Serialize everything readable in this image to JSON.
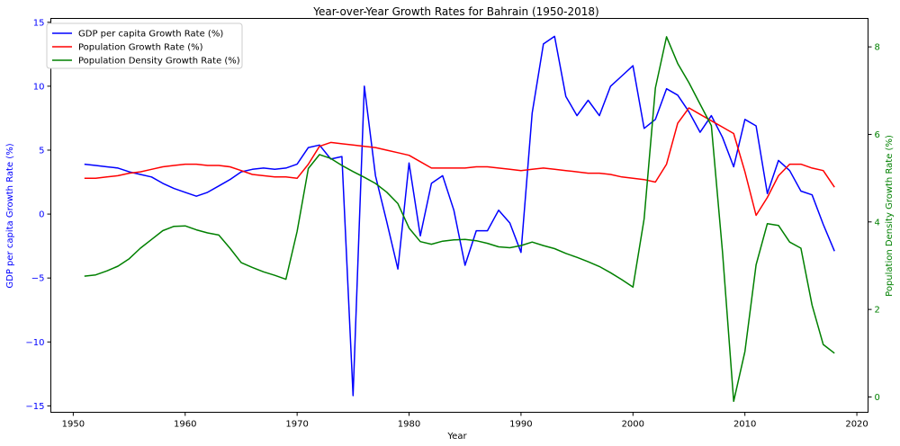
{
  "chart_data": {
    "type": "line",
    "title": "Year-over-Year Growth Rates for Bahrain (1950-2018)",
    "xlabel": "Year",
    "ylabel_left": "GDP per capita Growth Rate (%)",
    "ylabel_right": "Population Density Growth Rate (%)",
    "xlim": [
      1948,
      2021
    ],
    "ylim_left": [
      -15.5,
      15.3
    ],
    "ylim_right": [
      -0.35,
      8.65
    ],
    "x_ticks": [
      1950,
      1960,
      1970,
      1980,
      1990,
      2000,
      2010,
      2020
    ],
    "y_ticks_left": [
      -15,
      -10,
      -5,
      0,
      5,
      10,
      15
    ],
    "y_ticks_right": [
      0,
      2,
      4,
      6,
      8
    ],
    "legend_position": "top-left",
    "grid": false,
    "colors": {
      "gdp": "#0000ff",
      "population": "#ff0000",
      "density": "#008000",
      "left_axis": "#0000ff",
      "right_axis": "#008000"
    },
    "series": [
      {
        "name": "GDP per capita Growth Rate (%)",
        "axis": "left",
        "color": "#0000ff",
        "x": [
          1951,
          1952,
          1953,
          1954,
          1955,
          1956,
          1957,
          1958,
          1959,
          1960,
          1961,
          1962,
          1963,
          1964,
          1965,
          1966,
          1967,
          1968,
          1969,
          1970,
          1971,
          1972,
          1973,
          1974,
          1975,
          1976,
          1977,
          1978,
          1979,
          1980,
          1981,
          1982,
          1983,
          1984,
          1985,
          1986,
          1987,
          1988,
          1989,
          1990,
          1991,
          1992,
          1993,
          1994,
          1995,
          1996,
          1997,
          1998,
          1999,
          2000,
          2001,
          2002,
          2003,
          2004,
          2005,
          2006,
          2007,
          2008,
          2009,
          2010,
          2011,
          2012,
          2013,
          2014,
          2015,
          2016,
          2017,
          2018
        ],
        "values": [
          3.9,
          3.8,
          3.7,
          3.6,
          3.3,
          3.1,
          2.9,
          2.4,
          2.0,
          1.7,
          1.4,
          1.7,
          2.2,
          2.7,
          3.3,
          3.5,
          3.6,
          3.5,
          3.6,
          3.9,
          5.2,
          5.4,
          4.3,
          4.5,
          -14.2,
          10.0,
          3.0,
          -0.6,
          -4.3,
          4.0,
          -1.7,
          2.4,
          3.0,
          0.3,
          -4.0,
          -1.3,
          -1.3,
          0.3,
          -0.7,
          -3.0,
          7.9,
          13.3,
          13.9,
          9.2,
          7.7,
          8.9,
          7.7,
          10.0,
          10.8,
          11.6,
          6.7,
          7.4,
          9.8,
          9.3,
          8.0,
          6.4,
          7.7,
          6.0,
          3.7,
          7.4,
          6.9,
          1.6,
          4.2,
          3.4,
          1.8,
          1.5,
          -0.8,
          -2.9
        ]
      },
      {
        "name": "Population Growth Rate (%)",
        "axis": "left",
        "color": "#ff0000",
        "x": [
          1951,
          1952,
          1953,
          1954,
          1955,
          1956,
          1957,
          1958,
          1959,
          1960,
          1961,
          1962,
          1963,
          1964,
          1965,
          1966,
          1967,
          1968,
          1969,
          1970,
          1971,
          1972,
          1973,
          1974,
          1975,
          1976,
          1977,
          1978,
          1979,
          1980,
          1981,
          1982,
          1983,
          1984,
          1985,
          1986,
          1987,
          1988,
          1989,
          1990,
          1991,
          1992,
          1993,
          1994,
          1995,
          1996,
          1997,
          1998,
          1999,
          2000,
          2001,
          2002,
          2003,
          2004,
          2005,
          2006,
          2007,
          2008,
          2009,
          2010,
          2011,
          2012,
          2013,
          2014,
          2015,
          2016,
          2017,
          2018
        ],
        "values": [
          2.8,
          2.8,
          2.9,
          3.0,
          3.2,
          3.3,
          3.5,
          3.7,
          3.8,
          3.9,
          3.9,
          3.8,
          3.8,
          3.7,
          3.4,
          3.1,
          3.0,
          2.9,
          2.9,
          2.8,
          3.9,
          5.3,
          5.6,
          5.5,
          5.4,
          5.3,
          5.2,
          5.0,
          4.8,
          4.6,
          4.1,
          3.6,
          3.6,
          3.6,
          3.6,
          3.7,
          3.7,
          3.6,
          3.5,
          3.4,
          3.5,
          3.6,
          3.5,
          3.4,
          3.3,
          3.2,
          3.2,
          3.1,
          2.9,
          2.8,
          2.7,
          2.5,
          3.9,
          7.1,
          8.3,
          7.8,
          7.3,
          6.8,
          6.3,
          3.3,
          -0.1,
          1.3,
          3.0,
          3.9,
          3.9,
          3.6,
          3.4,
          2.1
        ]
      },
      {
        "name": "Population Density Growth Rate (%)",
        "axis": "right",
        "color": "#008000",
        "x": [
          1951,
          1952,
          1953,
          1954,
          1955,
          1956,
          1957,
          1958,
          1959,
          1960,
          1961,
          1962,
          1963,
          1964,
          1965,
          1966,
          1967,
          1968,
          1969,
          1970,
          1971,
          1972,
          1973,
          1974,
          1975,
          1976,
          1977,
          1978,
          1979,
          1980,
          1981,
          1982,
          1983,
          1984,
          1985,
          1986,
          1987,
          1988,
          1989,
          1990,
          1991,
          1992,
          1993,
          1994,
          1995,
          1996,
          1997,
          1998,
          1999,
          2000,
          2001,
          2002,
          2003,
          2004,
          2005,
          2006,
          2007,
          2008,
          2009,
          2010,
          2011,
          2012,
          2013,
          2014,
          2015,
          2016,
          2017,
          2018
        ],
        "values": [
          2.76,
          2.79,
          2.88,
          2.99,
          3.16,
          3.4,
          3.6,
          3.8,
          3.9,
          3.91,
          3.82,
          3.75,
          3.7,
          3.4,
          3.07,
          2.96,
          2.86,
          2.78,
          2.69,
          3.78,
          5.22,
          5.54,
          5.45,
          5.29,
          5.15,
          5.02,
          4.88,
          4.68,
          4.42,
          3.86,
          3.55,
          3.49,
          3.56,
          3.59,
          3.6,
          3.57,
          3.51,
          3.43,
          3.41,
          3.46,
          3.54,
          3.46,
          3.39,
          3.28,
          3.19,
          3.09,
          2.98,
          2.84,
          2.68,
          2.51,
          4.07,
          7.06,
          8.23,
          7.62,
          7.18,
          6.69,
          6.2,
          3.31,
          -0.1,
          1.04,
          3.02,
          3.96,
          3.92,
          3.54,
          3.4,
          2.1,
          1.2,
          1.0
        ]
      }
    ]
  }
}
